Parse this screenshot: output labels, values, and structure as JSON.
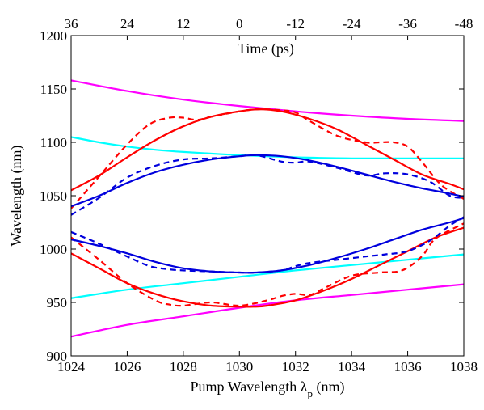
{
  "chart_data": {
    "type": "line",
    "xlabel": "Pump Wavelength λ",
    "xlabel_subscript": "p",
    "xlabel_unit": "(nm)",
    "ylabel": "Wavelength (nm)",
    "x2label": "Time (ps)",
    "xlim": [
      1024,
      1038
    ],
    "ylim": [
      900,
      1200
    ],
    "x_ticks": [
      1024,
      1026,
      1028,
      1030,
      1032,
      1034,
      1036,
      1038
    ],
    "y_ticks": [
      900,
      950,
      1000,
      1050,
      1100,
      1150,
      1200
    ],
    "x2_tick_labels": [
      "36",
      "24",
      "12",
      "0",
      "-12",
      "-24",
      "-36",
      "-48"
    ],
    "grid": false,
    "box": true,
    "series": [
      {
        "color": "#ff00ff",
        "style": "solid",
        "x": [
          1024,
          1026,
          1028,
          1030,
          1032,
          1034,
          1036,
          1038
        ],
        "y": [
          1158,
          1148,
          1140,
          1134,
          1129,
          1125,
          1122,
          1120
        ]
      },
      {
        "color": "#ff00ff",
        "style": "solid",
        "x": [
          1024,
          1026,
          1028,
          1030,
          1032,
          1034,
          1036,
          1038
        ],
        "y": [
          918,
          929,
          937,
          945,
          952,
          957,
          962,
          967
        ]
      },
      {
        "color": "#00ffff",
        "style": "solid",
        "x": [
          1024,
          1025,
          1026,
          1027,
          1028,
          1030,
          1032,
          1034,
          1036,
          1038
        ],
        "y": [
          1105,
          1100,
          1096,
          1093,
          1091,
          1088,
          1086,
          1085,
          1085,
          1085
        ]
      },
      {
        "color": "#00ffff",
        "style": "solid",
        "x": [
          1024,
          1026,
          1028,
          1030,
          1032,
          1034,
          1036,
          1038
        ],
        "y": [
          954,
          962,
          968,
          974,
          980,
          985,
          990,
          995
        ]
      },
      {
        "color": "#ff0000",
        "style": "solid",
        "x": [
          1024,
          1025,
          1026,
          1027,
          1028,
          1029,
          1030,
          1030.7,
          1031.5,
          1032.5,
          1033.5,
          1034.5,
          1035.5,
          1036.5,
          1037.5,
          1038
        ],
        "y": [
          1055,
          1069,
          1086,
          1102,
          1115,
          1124,
          1129,
          1131,
          1129,
          1122,
          1112,
          1098,
          1084,
          1070,
          1061,
          1056
        ]
      },
      {
        "color": "#ff0000",
        "style": "dashed",
        "x": [
          1024,
          1025,
          1026,
          1026.8,
          1027.5,
          1028,
          1028.5,
          1029,
          1030,
          1030.7,
          1031.5,
          1032,
          1032.5,
          1033.5,
          1034.5,
          1035,
          1035.5,
          1036,
          1036.5,
          1037.2,
          1038
        ],
        "y": [
          1038,
          1068,
          1098,
          1117,
          1123,
          1123,
          1121,
          1124,
          1129,
          1131,
          1130,
          1128,
          1120,
          1106,
          1100,
          1100,
          1100,
          1096,
          1082,
          1060,
          1047
        ]
      },
      {
        "color": "#ff0000",
        "style": "solid",
        "x": [
          1024,
          1025,
          1026,
          1027,
          1028,
          1029,
          1030,
          1030.5,
          1031,
          1032,
          1033,
          1034,
          1035,
          1036,
          1037,
          1038
        ],
        "y": [
          996,
          982,
          968,
          958,
          951,
          947,
          946,
          946,
          947,
          952,
          961,
          972,
          985,
          998,
          1011,
          1020
        ]
      },
      {
        "color": "#ff0000",
        "style": "dashed",
        "x": [
          1024,
          1025,
          1026,
          1027,
          1027.5,
          1028,
          1029,
          1030,
          1031,
          1031.5,
          1032,
          1032.5,
          1033,
          1034,
          1035,
          1035.8,
          1036.5,
          1037,
          1038
        ],
        "y": [
          1011,
          990,
          968,
          952,
          948,
          947,
          950,
          947,
          952,
          956,
          958,
          957,
          963,
          975,
          978,
          980,
          993,
          1010,
          1024
        ]
      },
      {
        "color": "#0000dd",
        "style": "solid",
        "x": [
          1024,
          1025,
          1026,
          1027,
          1028,
          1029,
          1030,
          1030.6,
          1031.5,
          1032.5,
          1033.5,
          1034.5,
          1035.5,
          1036.5,
          1037.5,
          1038
        ],
        "y": [
          1040,
          1050,
          1062,
          1072,
          1079,
          1084,
          1087,
          1088,
          1087,
          1083,
          1077,
          1070,
          1063,
          1057,
          1052,
          1049
        ]
      },
      {
        "color": "#0000dd",
        "style": "dashed",
        "x": [
          1024,
          1025,
          1026,
          1027,
          1028,
          1029,
          1030,
          1030.6,
          1031.5,
          1032,
          1032.5,
          1033.5,
          1034.5,
          1035.2,
          1036,
          1036.8,
          1037.5,
          1038
        ],
        "y": [
          1032,
          1048,
          1067,
          1078,
          1084,
          1085,
          1087,
          1088,
          1082,
          1081,
          1082,
          1076,
          1069,
          1071,
          1070,
          1063,
          1050,
          1048
        ]
      },
      {
        "color": "#0000dd",
        "style": "solid",
        "x": [
          1024,
          1025,
          1026,
          1027,
          1028,
          1029,
          1030,
          1030.6,
          1031.5,
          1032.5,
          1033.5,
          1034.5,
          1035.5,
          1036.5,
          1037.5,
          1038
        ],
        "y": [
          1009,
          1003,
          996,
          988,
          982,
          979,
          978,
          978,
          980,
          985,
          992,
          1000,
          1009,
          1018,
          1025,
          1029
        ]
      },
      {
        "color": "#0000dd",
        "style": "dashed",
        "x": [
          1024,
          1025,
          1026,
          1026.8,
          1027.5,
          1028,
          1029,
          1030,
          1030.6,
          1031.5,
          1032,
          1032.5,
          1033.5,
          1034.5,
          1035.2,
          1036,
          1036.8,
          1037.5,
          1038
        ],
        "y": [
          1016,
          1005,
          993,
          984,
          981,
          980,
          979,
          978,
          978,
          980,
          984,
          987,
          990,
          993,
          995,
          998,
          1008,
          1022,
          1030
        ]
      }
    ]
  }
}
